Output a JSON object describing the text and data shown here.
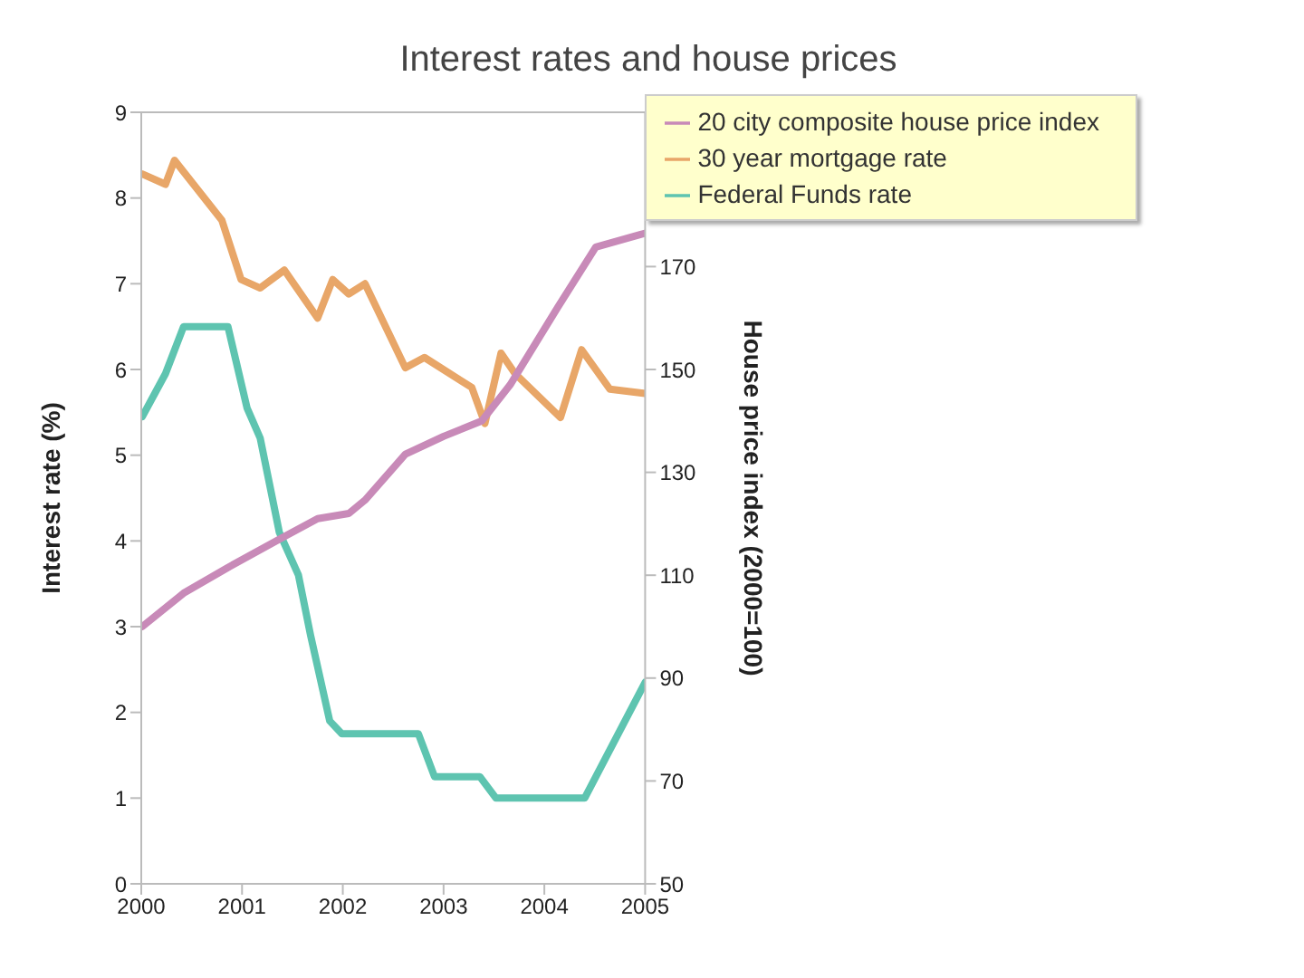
{
  "chart_data": {
    "type": "line",
    "title": "Interest rates and house prices",
    "ylabel": "Interest rate (%)",
    "y2label": "House price index (2000=100)",
    "xlim": [
      2000,
      2005
    ],
    "xticks": [
      2000,
      2001,
      2002,
      2003,
      2004,
      2005
    ],
    "ylim": [
      0,
      9
    ],
    "yticks": [
      0,
      1,
      2,
      3,
      4,
      5,
      6,
      7,
      8,
      9
    ],
    "y2lim": [
      50,
      200
    ],
    "y2ticks": [
      50,
      70,
      90,
      110,
      130,
      150,
      170
    ],
    "legend": "top right",
    "marker": "none",
    "line_style": "solid",
    "series": [
      {
        "name": "Federal Funds rate",
        "color": "#5ec4b0",
        "x": [
          2000.01,
          2000.24,
          2000.42,
          2000.86,
          2001.05,
          2001.18,
          2001.37,
          2001.56,
          2001.68,
          2001.87,
          2001.99,
          2002.75,
          2002.91,
          2003.36,
          2003.52,
          2004.4,
          2005
        ],
        "values": [
          5.45,
          5.95,
          6.5,
          6.5,
          5.55,
          5.2,
          4.1,
          3.6,
          2.9,
          1.9,
          1.75,
          1.75,
          1.25,
          1.25,
          1.0,
          1.0,
          2.35
        ]
      },
      {
        "name": "30 year mortgage rate",
        "color": "#e8a668",
        "x": [
          2000.01,
          2000.24,
          2000.33,
          2000.8,
          2000.99,
          2001.18,
          2001.42,
          2001.75,
          2001.9,
          2002.06,
          2002.22,
          2002.62,
          2002.81,
          2003.28,
          2003.41,
          2003.57,
          2003.71,
          2004.16,
          2004.37,
          2004.65,
          2005
        ],
        "values": [
          8.28,
          8.16,
          8.44,
          7.74,
          7.05,
          6.95,
          7.16,
          6.6,
          7.05,
          6.88,
          7.0,
          6.02,
          6.14,
          5.79,
          5.37,
          6.19,
          5.95,
          5.44,
          6.23,
          5.77,
          5.72
        ]
      },
      {
        "name": "20 city composite house price index",
        "color": "#c88ab8",
        "axis": "y2",
        "x": [
          2000.01,
          2000.42,
          2000.86,
          2001.37,
          2001.75,
          2002.06,
          2002.22,
          2002.62,
          2003.0,
          2003.38,
          2003.66,
          2004.13,
          2004.51,
          2005
        ],
        "values": [
          100,
          106.5,
          111.5,
          117,
          121,
          122,
          124.6,
          133.5,
          137,
          140,
          147,
          162,
          173.8,
          176.5
        ]
      }
    ]
  }
}
